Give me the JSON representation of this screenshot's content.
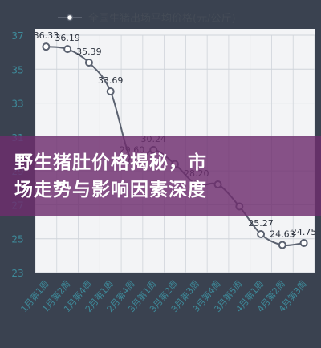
{
  "chart_data": {
    "type": "line",
    "title": "",
    "xlabel": "",
    "ylabel": "",
    "ylim": [
      23,
      37
    ],
    "yticks": [
      23,
      25,
      27,
      29,
      31,
      33,
      35,
      37
    ],
    "grid": true,
    "legend_position": "top",
    "categories": [
      "1月第1周",
      "1月第2周",
      "1月第4周",
      "2月第1周",
      "2月第4周",
      "3月第1周",
      "3月第2周",
      "3月第3周",
      "3月第4周",
      "3月第5周",
      "4月第1周",
      "4月第2周",
      "4月第3周"
    ],
    "series": [
      {
        "name": "全国生猪出场平均价格(元/公斤)",
        "color": "#5b6270",
        "values": [
          36.33,
          36.19,
          35.39,
          33.69,
          29.6,
          30.24,
          29.4,
          28.2,
          28.2,
          26.9,
          25.27,
          24.63,
          24.75
        ],
        "data_labels": [
          "36.33",
          "36.19",
          "35.39",
          "33.69",
          "29.60",
          "30.24",
          "",
          "28.20",
          "",
          "",
          "25.27",
          "24.63",
          "24.75"
        ]
      }
    ]
  },
  "overlay": {
    "line1": "野生猪肚价格揭秘，市",
    "line2": "场走势与影响因素深度"
  },
  "colors": {
    "axis_label": "#3e8a9a",
    "gridline": "#cfd4da",
    "line": "#5b6270",
    "overlay": "#6e2d6e"
  }
}
